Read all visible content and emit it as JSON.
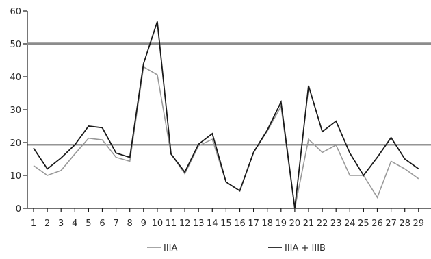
{
  "chart_data": {
    "type": "line",
    "title": "",
    "xlabel": "",
    "ylabel": "",
    "x": [
      1,
      2,
      3,
      4,
      5,
      6,
      7,
      8,
      9,
      10,
      11,
      12,
      13,
      14,
      15,
      16,
      17,
      18,
      19,
      20,
      21,
      22,
      23,
      24,
      25,
      26,
      27,
      28,
      29
    ],
    "ylim": [
      0,
      60
    ],
    "yticks": [
      0,
      10,
      20,
      30,
      40,
      50,
      60
    ],
    "grid": false,
    "legend_position": "bottom",
    "series": [
      {
        "name": "IIIA",
        "color": "#999999",
        "values": [
          13,
          10,
          11.5,
          16.5,
          21.3,
          20.8,
          15.5,
          14.3,
          43,
          40.6,
          16.5,
          10.5,
          19,
          21,
          8,
          5.3,
          17,
          23.5,
          31,
          0,
          21,
          17,
          19.2,
          10,
          10,
          3.3,
          14.3,
          12,
          9
        ]
      },
      {
        "name": "IIIA + IIIB",
        "color": "#1a1a1a",
        "values": [
          18.3,
          12,
          15.3,
          19.3,
          25,
          24.5,
          16.8,
          15.5,
          44,
          56.8,
          16.5,
          11,
          19.5,
          22.7,
          8,
          5.3,
          17,
          23.8,
          32.3,
          0,
          37.3,
          23.3,
          26.5,
          16.8,
          10,
          15.5,
          21.5,
          15,
          12
        ]
      }
    ],
    "reference_lines": [
      {
        "y": 50,
        "color": "#8c8c8c"
      },
      {
        "y": 19.3,
        "color": "#2b2b2b"
      }
    ]
  }
}
